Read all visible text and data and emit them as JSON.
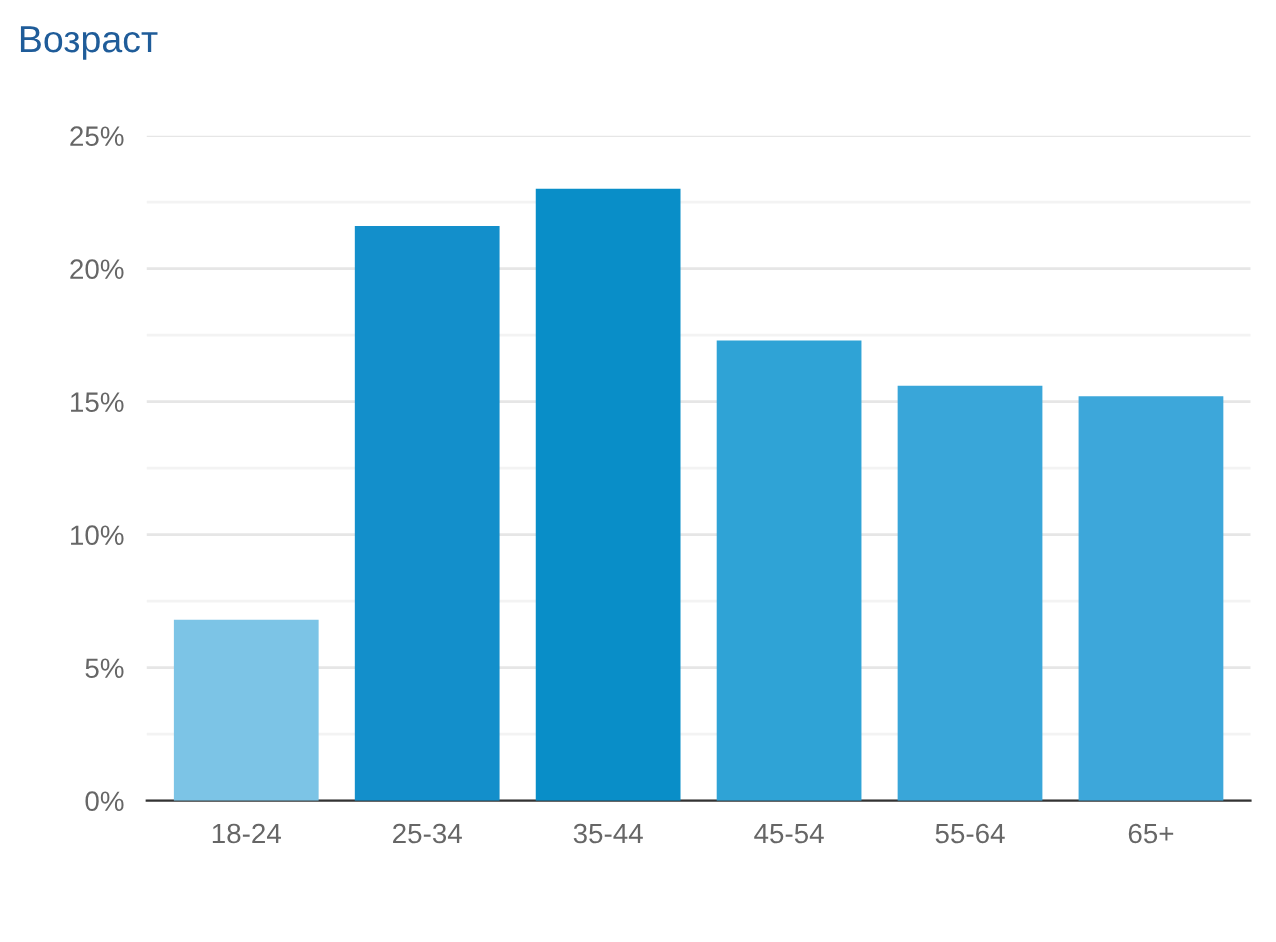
{
  "chart_data": {
    "type": "bar",
    "title": "Возраст",
    "categories": [
      "18-24",
      "25-34",
      "35-44",
      "45-54",
      "55-64",
      "65+"
    ],
    "values": [
      6.8,
      21.6,
      23.0,
      17.3,
      15.6,
      15.2
    ],
    "colors": [
      "#7cc4e6",
      "#138fcb",
      "#098ec8",
      "#2fa3d6",
      "#39a6d9",
      "#3da7da"
    ],
    "ylim": [
      0,
      25
    ],
    "yticks": [
      {
        "value": 0,
        "label": "0%"
      },
      {
        "value": 2.5,
        "label": null
      },
      {
        "value": 5,
        "label": "5%"
      },
      {
        "value": 7.5,
        "label": null
      },
      {
        "value": 10,
        "label": "10%"
      },
      {
        "value": 12.5,
        "label": null
      },
      {
        "value": 15,
        "label": "15%"
      },
      {
        "value": 17.5,
        "label": null
      },
      {
        "value": 20,
        "label": "20%"
      },
      {
        "value": 22.5,
        "label": null
      },
      {
        "value": 25,
        "label": "25%"
      }
    ],
    "grid": "y"
  }
}
